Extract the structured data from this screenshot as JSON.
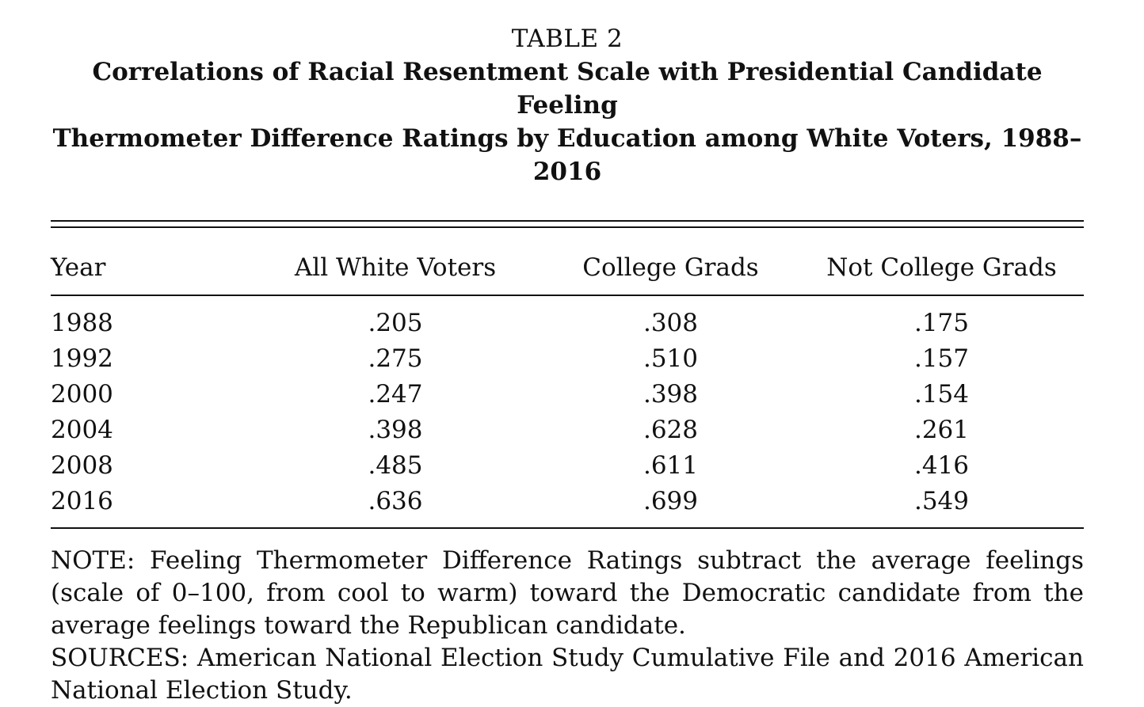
{
  "table_label": "TABLE 2",
  "title_line1": "Correlations of Racial Resentment Scale with Presidential Candidate Feeling",
  "title_line2": "Thermometer Difference Ratings by Education among White Voters, 1988–2016",
  "headers": [
    "Year",
    "All White Voters",
    "College Grads",
    "Not College Grads"
  ],
  "rows": [
    [
      "1988",
      ".205",
      ".308",
      ".175"
    ],
    [
      "1992",
      ".275",
      ".510",
      ".157"
    ],
    [
      "2000",
      ".247",
      ".398",
      ".154"
    ],
    [
      "2004",
      ".398",
      ".628",
      ".261"
    ],
    [
      "2008",
      ".485",
      ".611",
      ".416"
    ],
    [
      "2016",
      ".636",
      ".699",
      ".549"
    ]
  ],
  "note": "NOTE: Feeling Thermometer Difference Ratings subtract the average feelings (scale of 0–100, from cool to warm) toward the Democratic candidate from the average feelings toward the Republican candidate.",
  "sources": "SOURCES: American National Election Study Cumulative File and 2016 American National Election Study."
}
